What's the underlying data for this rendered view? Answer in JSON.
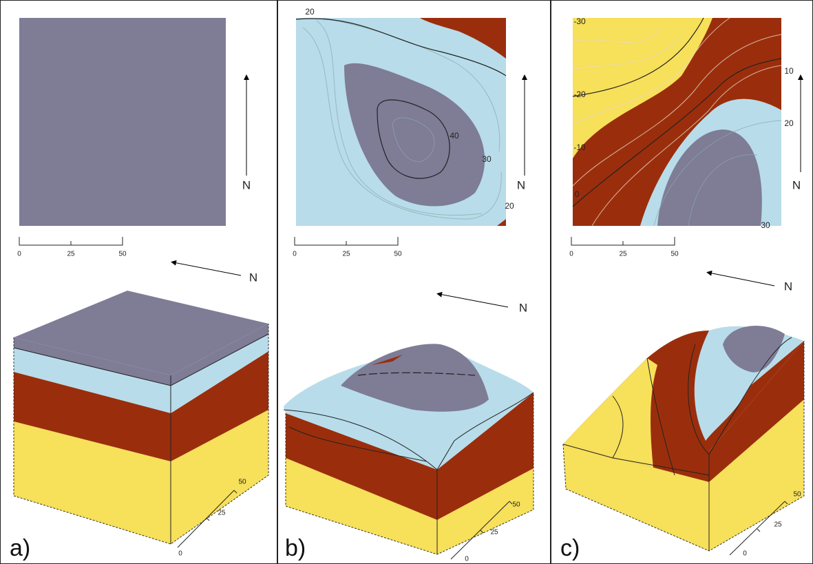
{
  "panels": [
    {
      "label": "a)",
      "map_north": "N",
      "block_north": "N",
      "map_scale": [
        "0",
        "25",
        "50"
      ],
      "block_scale": [
        "50",
        "25",
        "0"
      ]
    },
    {
      "label": "b)",
      "map_north": "N",
      "block_north": "N",
      "map_scale": [
        "0",
        "25",
        "50"
      ],
      "block_scale": [
        "50",
        "25",
        "0"
      ],
      "contour_labels": [
        "20",
        "40",
        "30",
        "20"
      ]
    },
    {
      "label": "c)",
      "map_north": "N",
      "block_north": "N",
      "map_scale": [
        "0",
        "25",
        "50"
      ],
      "block_scale": [
        "50",
        "25",
        "0"
      ],
      "contour_labels": [
        "-30",
        "10",
        "-20",
        "20",
        "-10",
        "0",
        "30"
      ]
    }
  ]
}
